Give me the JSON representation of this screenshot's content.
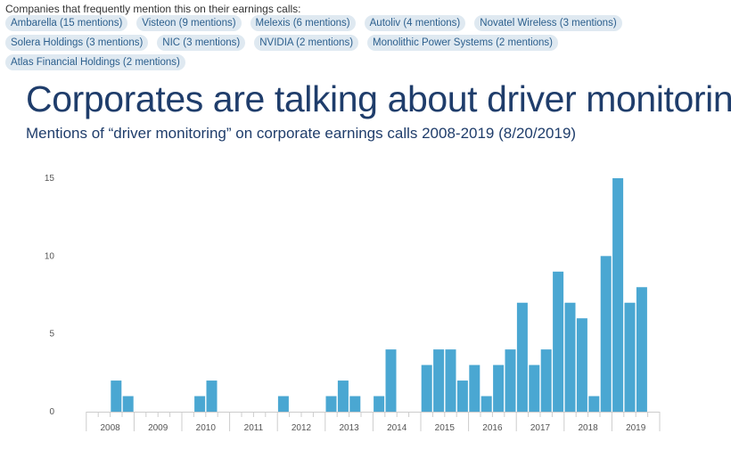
{
  "intro": "Companies that frequently mention this on their earnings calls:",
  "companies": [
    "Ambarella (15 mentions)",
    "Visteon (9 mentions)",
    "Melexis (6 mentions)",
    "Autoliv (4 mentions)",
    "Novatel Wireless (3 mentions)",
    "Solera Holdings (3 mentions)",
    "NIC (3 mentions)",
    "NVIDIA (2 mentions)",
    "Monolithic Power Systems (2 mentions)",
    "Atlas Financial Holdings (2 mentions)"
  ],
  "colors": {
    "bar": "#4aa7d2",
    "chip_bg": "#dfe9f1",
    "chip_text": "#2c5f8d",
    "title": "#1f3d6b"
  },
  "chart_data": {
    "type": "bar",
    "title": "Corporates are talking about driver monitoring",
    "subtitle": "Mentions of “driver monitoring” on corporate earnings calls 2008-2019 (8/20/2019)",
    "xlabel": "",
    "ylabel": "",
    "ylim": [
      0,
      15
    ],
    "yticks": [
      "0",
      "5",
      "10",
      "15"
    ],
    "year_labels": [
      "2008",
      "2009",
      "2010",
      "2011",
      "2012",
      "2013",
      "2014",
      "2015",
      "2016",
      "2017",
      "2018",
      "2019"
    ],
    "quarters_per_year": 4,
    "grid": false,
    "values": [
      0,
      0,
      2,
      1,
      0,
      0,
      0,
      0,
      0,
      1,
      2,
      0,
      0,
      0,
      0,
      0,
      1,
      0,
      0,
      0,
      1,
      2,
      1,
      0,
      1,
      4,
      0,
      0,
      3,
      4,
      4,
      2,
      3,
      1,
      3,
      4,
      7,
      3,
      4,
      9,
      7,
      6,
      1,
      10,
      15,
      7,
      8
    ]
  }
}
